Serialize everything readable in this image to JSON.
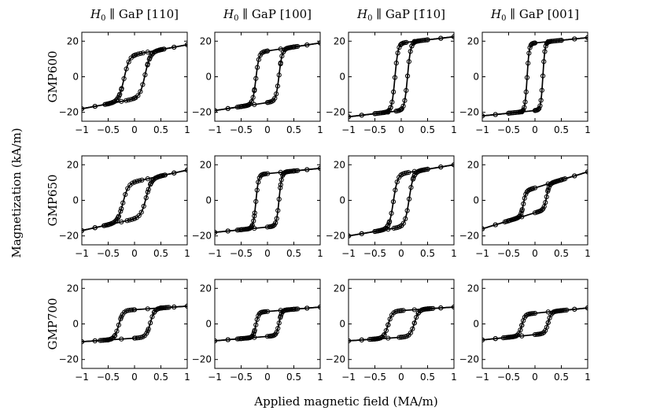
{
  "figure": {
    "xlabel": "Applied magnetic field (MA/m)",
    "ylabel": "Magnetization (kA/m)"
  },
  "chart_data": {
    "type": "line",
    "layout": "grid 3 rows x 4 columns",
    "xlabel": "Applied magnetic field (MA/m)",
    "ylabel": "Magnetization (kA/m)",
    "xlim": [
      -1,
      1
    ],
    "ylim": [
      -25,
      25
    ],
    "xticks": [
      -1,
      -0.5,
      0,
      0.5,
      1
    ],
    "xtick_labels": [
      "−1",
      "−0.5",
      "0",
      "0.5",
      "1"
    ],
    "yticks": [
      -20,
      0,
      20
    ],
    "ytick_labels": [
      "−20",
      "0",
      "20"
    ],
    "columns": [
      {
        "title": "H0 ∥ GaP [110]",
        "italic": "H",
        "sub": "0",
        "rest": " ∥ GaP [110]"
      },
      {
        "title": "H0 ∥ GaP [100]",
        "italic": "H",
        "sub": "0",
        "rest": " ∥ GaP [100]"
      },
      {
        "title": "H0 ∥ GaP [1̄10]",
        "italic": "H",
        "sub": "0",
        "rest": " ∥ GaP [1̄10]"
      },
      {
        "title": "H0 ∥ GaP [001]",
        "italic": "H",
        "sub": "0",
        "rest": " ∥ GaP [001]"
      }
    ],
    "rows": [
      "GMP600",
      "GMP650",
      "GMP700"
    ],
    "series_style": "fitted curve (solid line) with measured points (open circles)",
    "panels": [
      {
        "row": 0,
        "col": 0,
        "Ms": 12.5,
        "Hc": 0.2,
        "w": 0.1,
        "slope": 5.5
      },
      {
        "row": 0,
        "col": 1,
        "Ms": 14.5,
        "Hc": 0.22,
        "w": 0.06,
        "slope": 4.5
      },
      {
        "row": 0,
        "col": 2,
        "Ms": 19.0,
        "Hc": 0.12,
        "w": 0.06,
        "slope": 3.5
      },
      {
        "row": 0,
        "col": 3,
        "Ms": 19.0,
        "Hc": 0.15,
        "w": 0.04,
        "slope": 3.0
      },
      {
        "row": 1,
        "col": 0,
        "Ms": 10.5,
        "Hc": 0.22,
        "w": 0.1,
        "slope": 6.5
      },
      {
        "row": 1,
        "col": 1,
        "Ms": 15.0,
        "Hc": 0.22,
        "w": 0.05,
        "slope": 3.0
      },
      {
        "row": 1,
        "col": 2,
        "Ms": 15.0,
        "Hc": 0.15,
        "w": 0.08,
        "slope": 5.0
      },
      {
        "row": 1,
        "col": 3,
        "Ms": 7.0,
        "Hc": 0.22,
        "w": 0.05,
        "slope": 9.0
      },
      {
        "row": 2,
        "col": 0,
        "Ms": 8.0,
        "Hc": 0.3,
        "w": 0.08,
        "slope": 2.0
      },
      {
        "row": 2,
        "col": 1,
        "Ms": 7.0,
        "Hc": 0.22,
        "w": 0.05,
        "slope": 2.5
      },
      {
        "row": 2,
        "col": 2,
        "Ms": 7.5,
        "Hc": 0.25,
        "w": 0.08,
        "slope": 2.0
      },
      {
        "row": 2,
        "col": 3,
        "Ms": 6.0,
        "Hc": 0.25,
        "w": 0.06,
        "slope": 3.0
      }
    ]
  }
}
